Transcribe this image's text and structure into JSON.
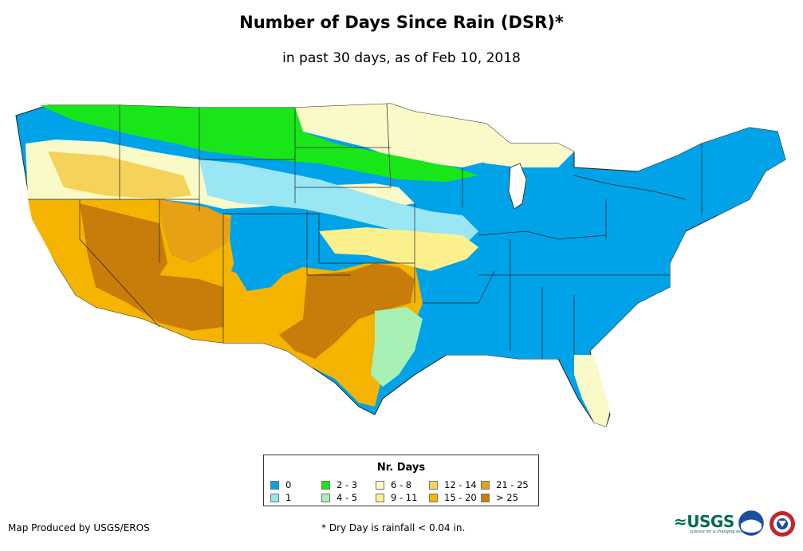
{
  "title": "Number of Days Since Rain (DSR)*",
  "subtitle": "in past 30 days, as of Feb 10, 2018",
  "legend": {
    "title": "Nr. Days",
    "items": [
      {
        "label": "0",
        "color": "#00a2e8"
      },
      {
        "label": "1",
        "color": "#99e6f5"
      },
      {
        "label": "2 - 3",
        "color": "#19e619"
      },
      {
        "label": "4 - 5",
        "color": "#a8f0b4"
      },
      {
        "label": "6 - 8",
        "color": "#fafac8"
      },
      {
        "label": "9 - 11",
        "color": "#fbf08c"
      },
      {
        "label": "12 - 14",
        "color": "#f5d25a"
      },
      {
        "label": "15 - 20",
        "color": "#f5b400"
      },
      {
        "label": "21 - 25",
        "color": "#e8a014"
      },
      {
        "label": "> 25",
        "color": "#c87d0a"
      }
    ]
  },
  "footer": {
    "credit": "Map Produced by USGS/EROS",
    "note": "* Dry Day is rainfall < 0.04 in."
  },
  "logos": {
    "usgs": "≈USGS",
    "usgs_tagline": "science for a changing world"
  }
}
